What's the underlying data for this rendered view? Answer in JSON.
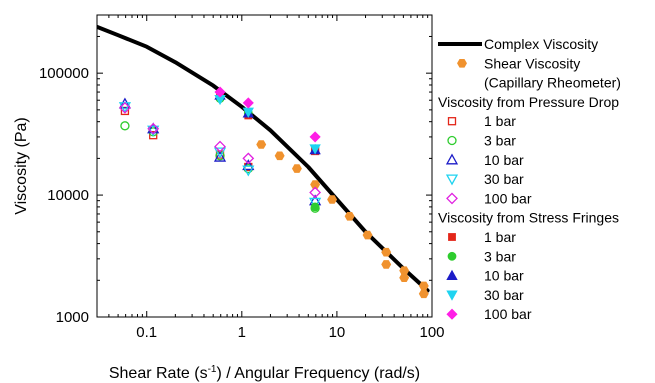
{
  "chart_data": {
    "type": "scatter",
    "x_scale": "log",
    "y_scale": "log",
    "xlim": [
      0.03,
      100
    ],
    "ylim": [
      1000,
      300000
    ],
    "x_ticks": [
      {
        "value": 0.1,
        "label": "0.1"
      },
      {
        "value": 1,
        "label": "1"
      },
      {
        "value": 10,
        "label": "10"
      },
      {
        "value": 100,
        "label": "100"
      }
    ],
    "y_ticks": [
      {
        "value": 1000,
        "label": "1000"
      },
      {
        "value": 10000,
        "label": "10000"
      },
      {
        "value": 100000,
        "label": "100000"
      }
    ],
    "xlabel": {
      "pre": "Shear Rate (s",
      "sup": "-1",
      "post": ") / Angular Frequency (rad/s)"
    },
    "ylabel": "Viscosity (Pa)",
    "grid": false,
    "legend_position": "right",
    "series": [
      {
        "name": "Complex Viscosity",
        "kind": "line",
        "color": "#000000",
        "x": [
          0.03,
          0.05,
          0.1,
          0.2,
          0.5,
          1,
          2,
          5,
          10,
          20,
          50,
          90
        ],
        "y": [
          240000,
          205000,
          165000,
          123000,
          79000,
          53000,
          34000,
          17000,
          9200,
          5000,
          2500,
          1650
        ]
      },
      {
        "name": "Shear Viscosity",
        "name_line2": "(Capillary Rheometer)",
        "kind": "marker",
        "marker": "hexagon",
        "filled": true,
        "color": "#f0922e",
        "x": [
          1.6,
          2.5,
          3.8,
          5.9,
          8.9,
          13.6,
          21,
          33,
          33,
          51,
          51,
          82,
          82
        ],
        "y": [
          26000,
          21000,
          16500,
          12200,
          9200,
          6700,
          4700,
          3400,
          2700,
          2400,
          2100,
          1800,
          1550
        ]
      },
      {
        "name": "Viscosity from Pressure Drop",
        "kind": "header"
      },
      {
        "name": "1 bar",
        "kind": "marker",
        "marker": "square",
        "filled": false,
        "color": "#e32619",
        "x": [
          0.059,
          0.117,
          0.59,
          1.17,
          5.9
        ],
        "y": [
          49000,
          31000,
          21500,
          17000,
          23000
        ]
      },
      {
        "name": "3 bar",
        "kind": "marker",
        "marker": "circle",
        "filled": false,
        "color": "#2ecc2e",
        "x": [
          0.059,
          0.117,
          0.59,
          1.17,
          5.9
        ],
        "y": [
          37000,
          33000,
          21000,
          16500,
          7800
        ]
      },
      {
        "name": "10 bar",
        "kind": "marker",
        "marker": "triangle",
        "filled": false,
        "color": "#1c1cc8",
        "x": [
          0.059,
          0.117,
          0.59,
          1.17,
          5.9
        ],
        "y": [
          56000,
          35000,
          20500,
          17500,
          9000
        ]
      },
      {
        "name": "30 bar",
        "kind": "marker",
        "marker": "triangle-down",
        "filled": false,
        "color": "#1fd3f0",
        "x": [
          0.059,
          0.117,
          0.59,
          1.17,
          5.9
        ],
        "y": [
          53000,
          34000,
          22500,
          16000,
          8700
        ]
      },
      {
        "name": "100 bar",
        "kind": "marker",
        "marker": "diamond",
        "filled": false,
        "color": "#e020e0",
        "x": [
          0.059,
          0.117,
          0.59,
          1.17,
          5.9
        ],
        "y": [
          52000,
          35000,
          25000,
          20000,
          10500
        ]
      },
      {
        "name": "Viscosity from Stress Fringes",
        "kind": "header"
      },
      {
        "name": "1 bar",
        "kind": "marker",
        "marker": "square",
        "filled": true,
        "color": "#e32619",
        "x": [
          0.59,
          1.17,
          5.9
        ],
        "y": [
          64000,
          45000,
          23000
        ]
      },
      {
        "name": "3 bar",
        "kind": "marker",
        "marker": "circle",
        "filled": true,
        "color": "#2ecc2e",
        "x": [
          0.59,
          1.17,
          5.9
        ],
        "y": [
          62000,
          47000,
          8000
        ]
      },
      {
        "name": "10 bar",
        "kind": "marker",
        "marker": "triangle",
        "filled": true,
        "color": "#1c1cc8",
        "x": [
          0.59,
          1.17,
          5.9
        ],
        "y": [
          66000,
          47000,
          23500
        ]
      },
      {
        "name": "30 bar",
        "kind": "marker",
        "marker": "triangle-down",
        "filled": true,
        "color": "#1fd3f0",
        "x": [
          0.59,
          1.17,
          5.9
        ],
        "y": [
          61000,
          48000,
          24000
        ]
      },
      {
        "name": "100 bar",
        "kind": "marker",
        "marker": "diamond",
        "filled": true,
        "color": "#ff1ee6",
        "x": [
          0.59,
          1.17,
          5.9
        ],
        "y": [
          70000,
          57000,
          30000
        ]
      }
    ]
  }
}
